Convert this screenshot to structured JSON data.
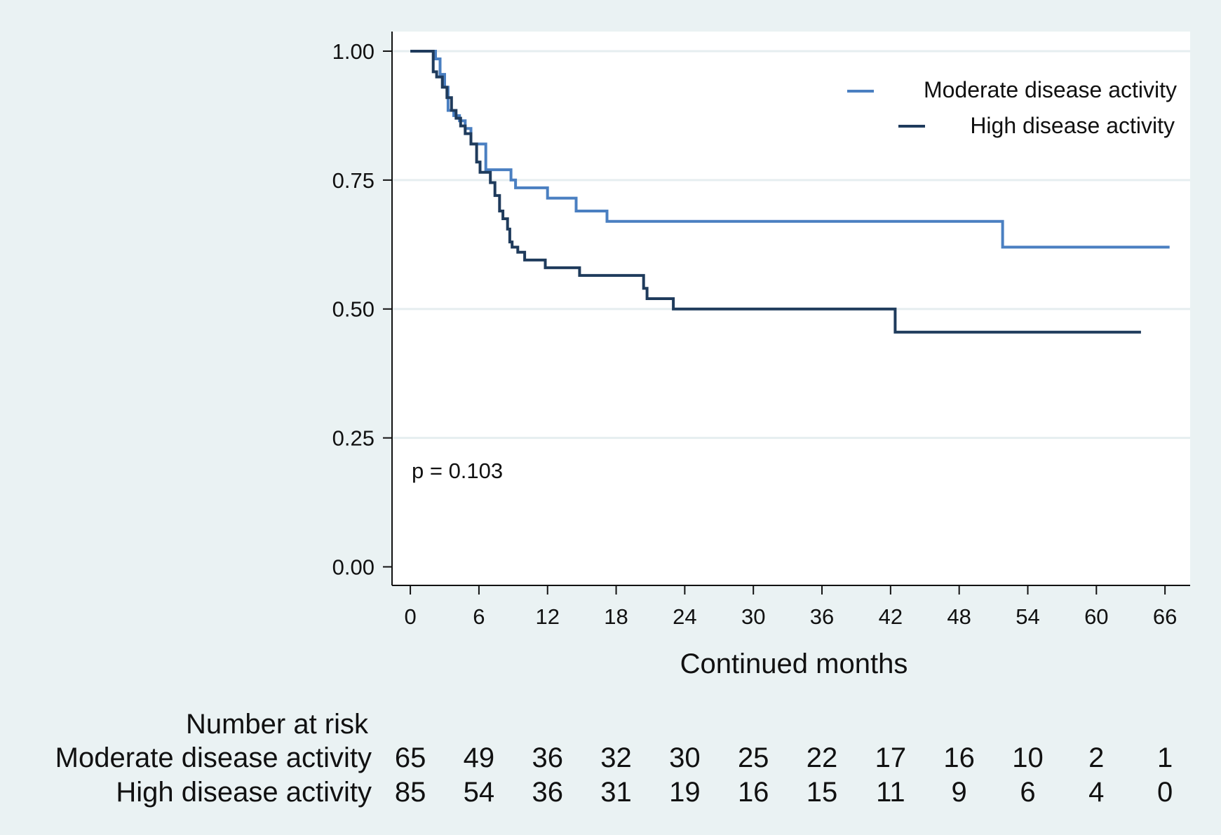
{
  "chart_data": {
    "type": "line",
    "step": true,
    "title": "",
    "xlabel": "Continued months",
    "ylabel": "",
    "xlim": [
      -1.6,
      68.2
    ],
    "ylim": [
      -0.036,
      1.038
    ],
    "x_ticks": [
      0,
      6,
      12,
      18,
      24,
      30,
      36,
      42,
      48,
      54,
      60,
      66
    ],
    "y_ticks": [
      0.0,
      0.25,
      0.5,
      0.75,
      1.0
    ],
    "y_tick_labels": [
      "0.00",
      "0.25",
      "0.50",
      "0.75",
      "1.00"
    ],
    "grid": "horizontal",
    "legend_position": "top-right",
    "annotation": "p = 0.103",
    "series": [
      {
        "name": "Moderate disease activity",
        "color": "#4a7fc1",
        "x": [
          0,
          2.2,
          2.6,
          3.0,
          3.3,
          3.8,
          4.3,
          4.8,
          5.3,
          6.0,
          6.6,
          8.8,
          9.2,
          12.0,
          14.5,
          17.2,
          51.8,
          66.4
        ],
        "y": [
          1.0,
          0.985,
          0.955,
          0.93,
          0.885,
          0.875,
          0.865,
          0.85,
          0.82,
          0.82,
          0.77,
          0.75,
          0.735,
          0.715,
          0.69,
          0.67,
          0.62,
          0.62
        ]
      },
      {
        "name": "High disease activity",
        "color": "#1f3b5c",
        "x": [
          0,
          2.0,
          2.3,
          2.8,
          3.2,
          3.6,
          4.0,
          4.4,
          4.8,
          5.3,
          5.8,
          6.1,
          7.0,
          7.4,
          7.8,
          8.1,
          8.5,
          8.7,
          8.9,
          9.4,
          10.0,
          11.8,
          14.8,
          20.4,
          20.7,
          23.0,
          42.4,
          63.9
        ],
        "y": [
          1.0,
          0.96,
          0.95,
          0.93,
          0.91,
          0.885,
          0.87,
          0.855,
          0.84,
          0.82,
          0.785,
          0.765,
          0.745,
          0.72,
          0.69,
          0.675,
          0.655,
          0.63,
          0.62,
          0.61,
          0.595,
          0.58,
          0.565,
          0.54,
          0.52,
          0.5,
          0.455,
          0.455
        ]
      }
    ],
    "risk_table": {
      "title": "Number at risk",
      "rows": [
        {
          "name": "Moderate disease activity",
          "values": [
            65,
            49,
            36,
            32,
            30,
            25,
            22,
            17,
            16,
            10,
            2,
            1
          ]
        },
        {
          "name": "High disease activity",
          "values": [
            85,
            54,
            36,
            31,
            19,
            16,
            15,
            11,
            9,
            6,
            4,
            0
          ]
        }
      ]
    }
  }
}
